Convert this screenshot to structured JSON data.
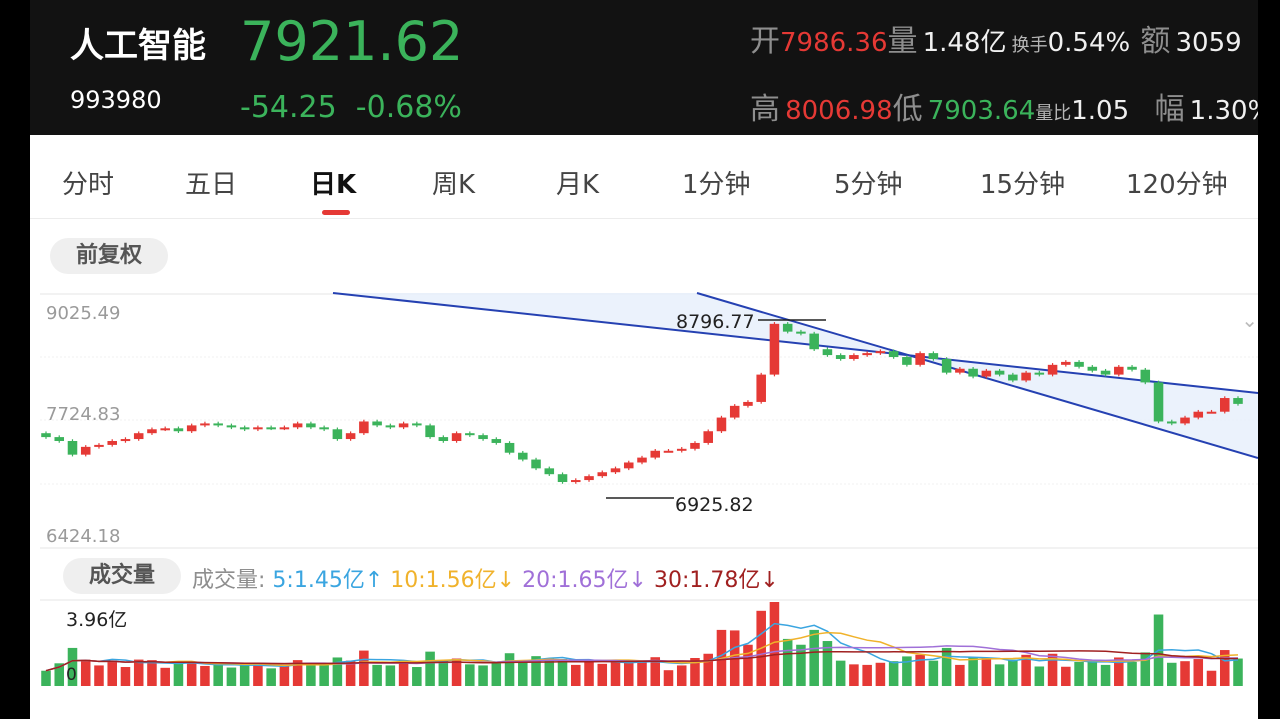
{
  "header": {
    "name": "人工智能",
    "code": "993980",
    "price": "7921.62",
    "change": "-54.25",
    "change_pct": "-0.68%",
    "metrics": {
      "open_label": "开",
      "open_value": "7986.36",
      "volume_label": "量",
      "volume_value": "1.48亿",
      "turnover_label": "换手",
      "turnover_value": "0.54%",
      "amount_label": "额",
      "amount_value": "3059",
      "high_label": "高",
      "high_value": "8006.98",
      "low_label": "低",
      "low_value": "7903.64",
      "vol_ratio_label": "量比",
      "vol_ratio_value": "1.05",
      "amplitude_label": "幅",
      "amplitude_value": "1.30%"
    }
  },
  "tabs": [
    "分时",
    "五日",
    "日K",
    "周K",
    "月K",
    "1分钟",
    "5分钟",
    "15分钟",
    "120分钟"
  ],
  "active_tab": "日K",
  "adjust_label": "前复权",
  "volume_section": {
    "pill_label": "成交量",
    "prefix": "成交量:",
    "ma5": "5:1.45亿",
    "ma5_arrow": "↑",
    "ma10": "10:1.56亿",
    "ma10_arrow": "↓",
    "ma20": "20:1.65亿",
    "ma20_arrow": "↓",
    "ma30": "30:1.78亿",
    "ma30_arrow": "↓",
    "max_label": "3.96亿",
    "zero_label": "0"
  },
  "colors": {
    "up": "#e53935",
    "down": "#3bb35b",
    "channel": "#2541b2",
    "ma5": "#3aa5e0",
    "ma10": "#f0b22b",
    "ma20": "#a070d8",
    "ma30": "#a02020"
  },
  "chart_data": {
    "type": "candlestick",
    "y_ticks": [
      "9025.49",
      "7724.83",
      "6424.18"
    ],
    "ylim": [
      6424.18,
      9025.49
    ],
    "annotations": [
      {
        "label": "8796.77",
        "kind": "high"
      },
      {
        "label": "6925.82",
        "kind": "low"
      }
    ],
    "closes": [
      7560,
      7520,
      7380,
      7460,
      7480,
      7520,
      7540,
      7600,
      7640,
      7650,
      7620,
      7680,
      7700,
      7680,
      7660,
      7640,
      7660,
      7650,
      7660,
      7700,
      7660,
      7640,
      7540,
      7600,
      7720,
      7680,
      7660,
      7700,
      7680,
      7560,
      7520,
      7600,
      7580,
      7540,
      7500,
      7400,
      7330,
      7240,
      7180,
      7100,
      7120,
      7160,
      7200,
      7240,
      7300,
      7350,
      7420,
      7420,
      7440,
      7500,
      7620,
      7760,
      7880,
      7920,
      8200,
      8720,
      8640,
      8620,
      8460,
      8400,
      8360,
      8400,
      8420,
      8440,
      8380,
      8300,
      8420,
      8360,
      8220,
      8260,
      8180,
      8240,
      8200,
      8140,
      8220,
      8200,
      8300,
      8330,
      8280,
      8240,
      8200,
      8280,
      8250,
      8120,
      7720,
      7700,
      7760,
      7820,
      7820,
      7960,
      7900
    ]
  }
}
